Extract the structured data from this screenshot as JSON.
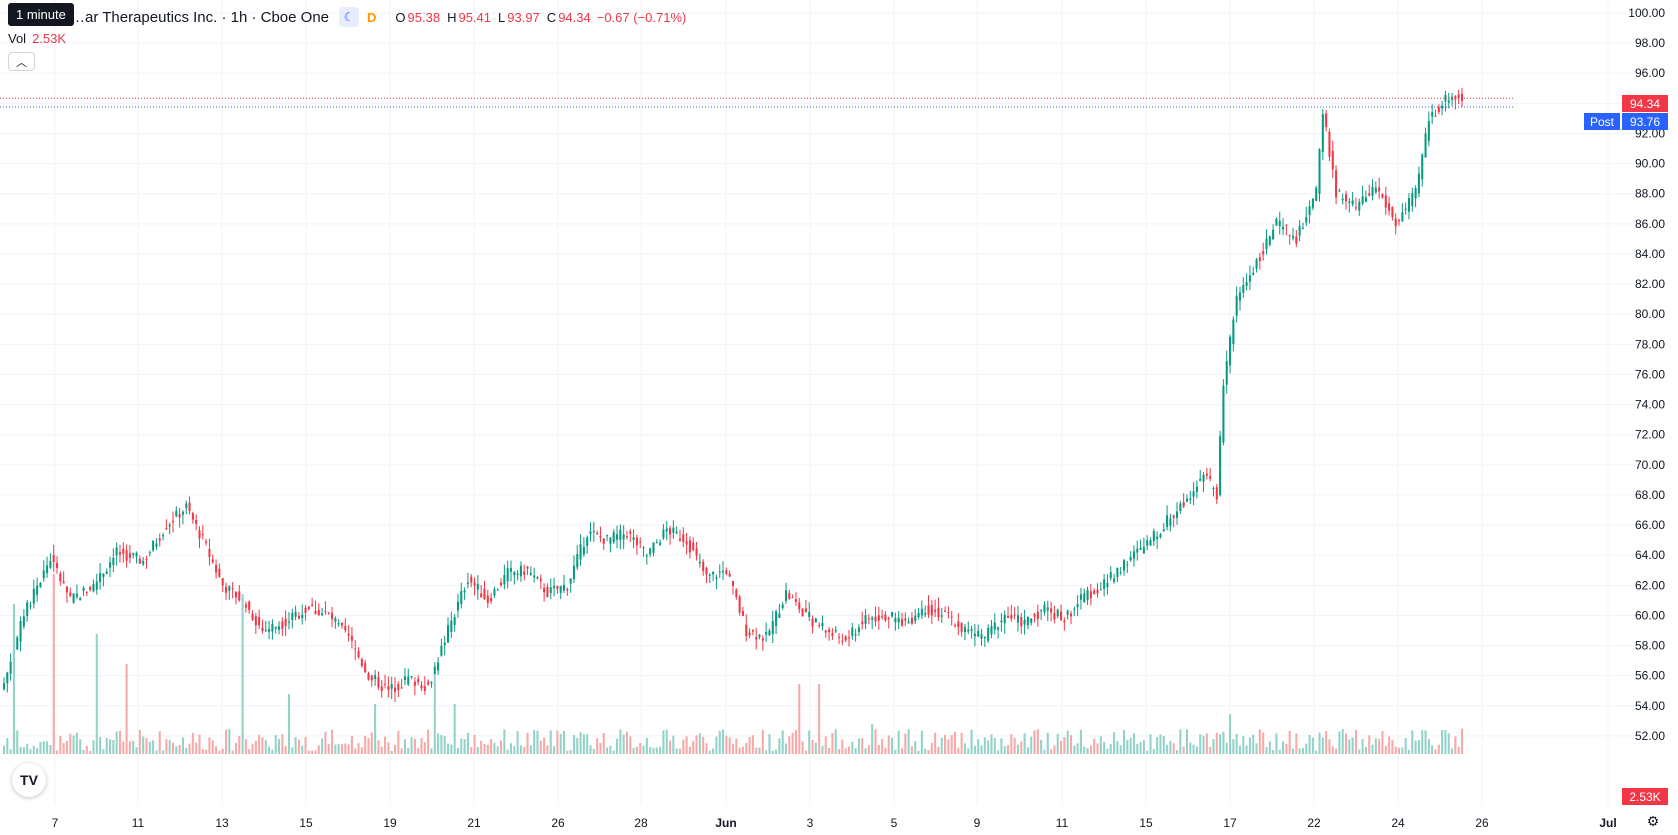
{
  "header": {
    "title": "…ar Therapeutics Inc. · 1h · Cboe One",
    "session_icon": "moon-icon",
    "delay_badge": "D",
    "ohlc": {
      "open_label": "O",
      "open": "95.38",
      "high_label": "H",
      "high": "95.41",
      "low_label": "L",
      "low": "93.97",
      "close_label": "C",
      "close": "94.34",
      "change": "−0.67 (−0.71%)"
    },
    "tooltip": "1 minute"
  },
  "volume": {
    "label": "Vol",
    "value": "2.53K"
  },
  "collapse_icon": "chevron-up-icon",
  "logo_icon": "tradingview-logo-icon",
  "settings_icon": "gear-icon",
  "colors": {
    "up": "#089981",
    "down": "#f23645",
    "up_vol": "#92d2c8",
    "down_vol": "#f7a9a7",
    "grid": "#f0f3fa",
    "post": "#2962ff"
  },
  "price_tags": {
    "last": "94.34",
    "post_label": "Post",
    "post": "93.76",
    "volume": "2.53K"
  },
  "chart_data": {
    "type": "candlestick",
    "y_ticks": [
      "100.00",
      "98.00",
      "96.00",
      "94.00",
      "92.00",
      "90.00",
      "88.00",
      "86.00",
      "84.00",
      "82.00",
      "80.00",
      "78.00",
      "76.00",
      "74.00",
      "72.00",
      "70.00",
      "68.00",
      "66.00",
      "64.00",
      "62.00",
      "60.00",
      "58.00",
      "56.00",
      "54.00",
      "52.00"
    ],
    "ylim": [
      50.8,
      100.0
    ],
    "x_labels": [
      "7",
      "11",
      "13",
      "15",
      "19",
      "21",
      "26",
      "28",
      "Jun",
      "3",
      "5",
      "9",
      "11",
      "15",
      "17",
      "22",
      "24",
      "26",
      "Jul"
    ],
    "anchors": [
      [
        0,
        55.5
      ],
      [
        6,
        60
      ],
      [
        14,
        63.8
      ],
      [
        20,
        61
      ],
      [
        27,
        62
      ],
      [
        34,
        64.2
      ],
      [
        42,
        63.6
      ],
      [
        49,
        66
      ],
      [
        55,
        67.2
      ],
      [
        60,
        65
      ],
      [
        66,
        62
      ],
      [
        72,
        61
      ],
      [
        78,
        59
      ],
      [
        84,
        59.5
      ],
      [
        92,
        60.5
      ],
      [
        98,
        60
      ],
      [
        104,
        58.5
      ],
      [
        110,
        56
      ],
      [
        116,
        55
      ],
      [
        122,
        55.8
      ],
      [
        128,
        55.3
      ],
      [
        134,
        59
      ],
      [
        140,
        62.5
      ],
      [
        146,
        61
      ],
      [
        152,
        62.8
      ],
      [
        158,
        63
      ],
      [
        164,
        61.5
      ],
      [
        170,
        62
      ],
      [
        176,
        65.5
      ],
      [
        182,
        65
      ],
      [
        188,
        65.5
      ],
      [
        194,
        64
      ],
      [
        200,
        65.7
      ],
      [
        206,
        65
      ],
      [
        212,
        62.5
      ],
      [
        218,
        63
      ],
      [
        224,
        59
      ],
      [
        230,
        58.5
      ],
      [
        236,
        61.5
      ],
      [
        242,
        60
      ],
      [
        248,
        59
      ],
      [
        254,
        58.3
      ],
      [
        260,
        59.8
      ],
      [
        266,
        60
      ],
      [
        272,
        59.5
      ],
      [
        278,
        60.5
      ],
      [
        284,
        60
      ],
      [
        290,
        59
      ],
      [
        296,
        58.6
      ],
      [
        302,
        60
      ],
      [
        308,
        59.5
      ],
      [
        314,
        60.5
      ],
      [
        320,
        59.8
      ],
      [
        326,
        61.3
      ],
      [
        332,
        62
      ],
      [
        338,
        63.5
      ],
      [
        344,
        64.5
      ],
      [
        350,
        66
      ],
      [
        356,
        67.5
      ],
      [
        362,
        69.5
      ],
      [
        366,
        68
      ],
      [
        368,
        75.5
      ],
      [
        372,
        81
      ],
      [
        378,
        83.5
      ],
      [
        384,
        86
      ],
      [
        390,
        85
      ],
      [
        396,
        88
      ],
      [
        398,
        93.5
      ],
      [
        402,
        88
      ],
      [
        408,
        87
      ],
      [
        414,
        88.5
      ],
      [
        420,
        86
      ],
      [
        426,
        88
      ],
      [
        430,
        93
      ],
      [
        436,
        94.5
      ],
      [
        440,
        94.34
      ]
    ],
    "volume_max_k": 20,
    "volume_spikes": [
      [
        3,
        15
      ],
      [
        15,
        18
      ],
      [
        28,
        12
      ],
      [
        37,
        9
      ],
      [
        72,
        16
      ],
      [
        86,
        6
      ],
      [
        112,
        5
      ],
      [
        130,
        8
      ],
      [
        136,
        5
      ],
      [
        240,
        7
      ],
      [
        246,
        7
      ],
      [
        262,
        3
      ],
      [
        370,
        4
      ],
      [
        404,
        2.5
      ],
      [
        440,
        2.53
      ]
    ],
    "post_market_price": 93.76,
    "last_price": 94.34
  }
}
